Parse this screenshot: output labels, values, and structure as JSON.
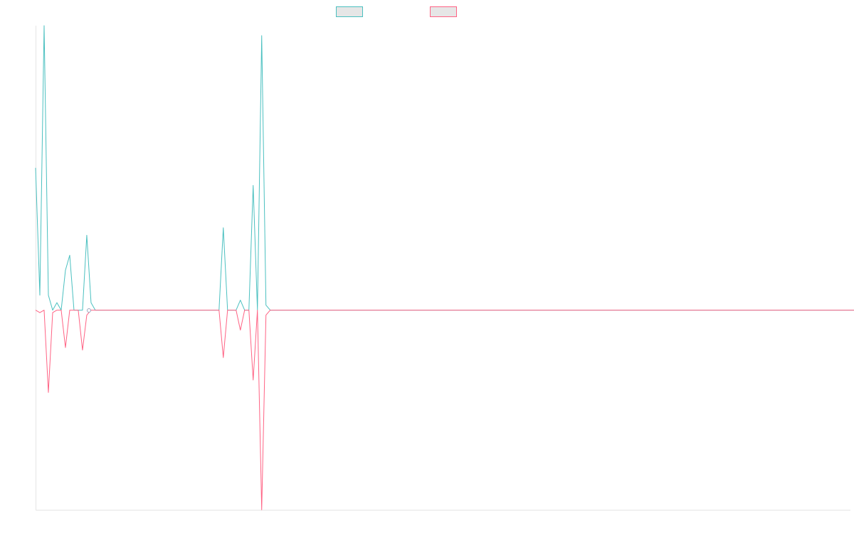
{
  "chart_data": {
    "type": "line",
    "title": "",
    "xlabel": "",
    "ylabel": "",
    "legend_position": "top-center",
    "grid": false,
    "ylim": [
      -0.8,
      1.14
    ],
    "x_count": 192,
    "series": [
      {
        "name": "",
        "color": "#4bc0c0",
        "fill": "#e6e6e6",
        "values": [
          0.57,
          0.06,
          1.14,
          0.06,
          0.0,
          0.03,
          0.0,
          0.16,
          0.22,
          0.0,
          0.0,
          0.0,
          0.3,
          0.03,
          0.0,
          0.0,
          0.0,
          0.0,
          0.0,
          0.0,
          0.0,
          0.0,
          0.0,
          0.0,
          0.0,
          0.0,
          0.0,
          0.0,
          0.0,
          0.0,
          0.0,
          0.0,
          0.0,
          0.0,
          0.0,
          0.0,
          0.0,
          0.0,
          0.0,
          0.0,
          0.0,
          0.0,
          0.0,
          0.0,
          0.33,
          0.0,
          0.0,
          0.0,
          0.04,
          0.0,
          0.0,
          0.5,
          0.0,
          1.1,
          0.02,
          0.0,
          0.0,
          0.0,
          0.0,
          0.0,
          0.0,
          0.0,
          0.0,
          0.0,
          0.0,
          0.0,
          0.0,
          0.0,
          0.0,
          0.0,
          0.0,
          0.0,
          0.0,
          0.0,
          0.0,
          0.0,
          0.0,
          0.0,
          0.0,
          0.0,
          0.0,
          0.0,
          0.0,
          0.0,
          0.0,
          0.0,
          0.0,
          0.0,
          0.0,
          0.0,
          0.0,
          0.0,
          0.0,
          0.0,
          0.0,
          0.0,
          0.0,
          0.0,
          0.0,
          0.0,
          0.0,
          0.0,
          0.0,
          0.0,
          0.0,
          0.0,
          0.0,
          0.0,
          0.0,
          0.0,
          0.0,
          0.0,
          0.0,
          0.0,
          0.0,
          0.0,
          0.0,
          0.0,
          0.0,
          0.0,
          0.0,
          0.0,
          0.0,
          0.0,
          0.0,
          0.0,
          0.0,
          0.0,
          0.0,
          0.0,
          0.0,
          0.0,
          0.0,
          0.0,
          0.0,
          0.0,
          0.0,
          0.0,
          0.0,
          0.0,
          0.0,
          0.0,
          0.0,
          0.0,
          0.0,
          0.0,
          0.0,
          0.0,
          0.0,
          0.0,
          0.0,
          0.0,
          0.0,
          0.0,
          0.0,
          0.0,
          0.0,
          0.0,
          0.0,
          0.0,
          0.0,
          0.0,
          0.0,
          0.0,
          0.0,
          0.0,
          0.0,
          0.0,
          0.0,
          0.0,
          0.0,
          0.0,
          0.0,
          0.0,
          0.0,
          0.0,
          0.0,
          0.0,
          0.0,
          0.0,
          0.0,
          0.0,
          0.0,
          0.0,
          0.0,
          0.0,
          0.0,
          0.0,
          0.0,
          0.0,
          0.0,
          0.0,
          0.0,
          0.0,
          0.0,
          0.0
        ],
        "spikes_extra": "placeholder"
      },
      {
        "name": "",
        "color": "#ff6384",
        "fill": "#e6e6e6",
        "values": [
          0.0,
          -0.01,
          0.0,
          -0.33,
          -0.01,
          0.0,
          0.0,
          -0.15,
          0.0,
          0.0,
          0.0,
          -0.16,
          -0.02,
          0.0,
          0.0,
          0.0,
          0.0,
          0.0,
          0.0,
          0.0,
          0.0,
          0.0,
          0.0,
          0.0,
          0.0,
          0.0,
          0.0,
          0.0,
          0.0,
          0.0,
          0.0,
          0.0,
          0.0,
          0.0,
          0.0,
          0.0,
          0.0,
          0.0,
          0.0,
          0.0,
          0.0,
          0.0,
          0.0,
          0.0,
          -0.19,
          0.0,
          0.0,
          0.0,
          -0.08,
          0.0,
          0.0,
          -0.28,
          0.0,
          -0.8,
          -0.02,
          0.0,
          0.0,
          0.0,
          0.0,
          0.0,
          0.0,
          0.0,
          0.0,
          0.0,
          0.0,
          0.0,
          0.0,
          0.0,
          0.0,
          0.0,
          0.0,
          0.0,
          0.0,
          0.0,
          0.0,
          0.0,
          0.0,
          0.0,
          0.0,
          0.0,
          0.0,
          0.0,
          0.0,
          0.0,
          0.0,
          0.0,
          0.0,
          0.0,
          0.0,
          0.0,
          0.0,
          0.0,
          0.0,
          0.0,
          0.0,
          0.0,
          0.0,
          0.0,
          0.0,
          0.0,
          0.0,
          0.0,
          0.0,
          0.0,
          0.0,
          0.0,
          0.0,
          0.0,
          0.0,
          0.0,
          0.0,
          0.0,
          0.0,
          0.0,
          0.0,
          0.0,
          0.0,
          0.0,
          0.0,
          0.0,
          0.0,
          0.0,
          0.0,
          0.0,
          0.0,
          0.0,
          0.0,
          0.0,
          0.0,
          0.0,
          0.0,
          0.0,
          0.0,
          0.0,
          0.0,
          0.0,
          0.0,
          0.0,
          0.0,
          0.0,
          0.0,
          0.0,
          0.0,
          0.0,
          0.0,
          0.0,
          0.0,
          0.0,
          0.0,
          0.0,
          0.0,
          0.0,
          0.0,
          0.0,
          0.0,
          0.0,
          0.0,
          0.0,
          0.0,
          0.0,
          0.0,
          0.0,
          0.0,
          0.0,
          0.0,
          0.0,
          0.0,
          0.0,
          0.0,
          0.0,
          0.0,
          0.0,
          0.0,
          0.0,
          0.0,
          0.0,
          0.0,
          0.0,
          0.0,
          0.0,
          0.0,
          0.0,
          0.0,
          0.0,
          0.0,
          0.0,
          0.0,
          0.0,
          0.0,
          0.0,
          0.0,
          0.0,
          0.0
        ]
      }
    ]
  }
}
